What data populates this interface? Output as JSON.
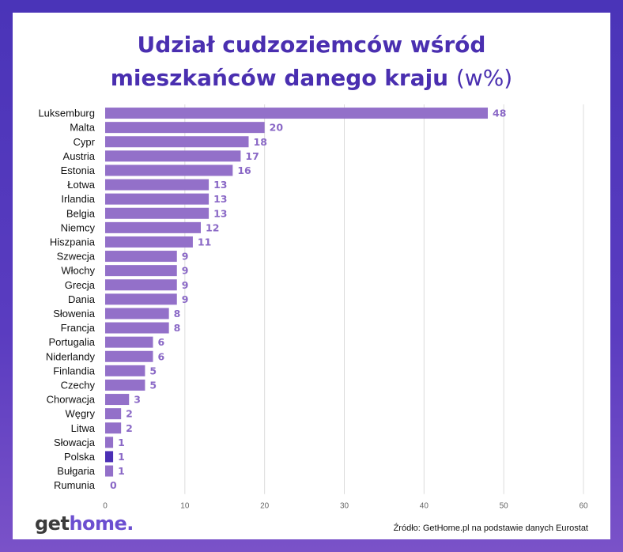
{
  "chart_data": {
    "type": "bar",
    "orientation": "horizontal",
    "title_main_line1": "Udział cudzoziemców wśród",
    "title_main_line2": "mieszkańców danego kraju",
    "title_unit": "(w%)",
    "categories": [
      "Luksemburg",
      "Malta",
      "Cypr",
      "Austria",
      "Estonia",
      "Łotwa",
      "Irlandia",
      "Belgia",
      "Niemcy",
      "Hiszpania",
      "Szwecja",
      "Włochy",
      "Grecja",
      "Dania",
      "Słowenia",
      "Francja",
      "Portugalia",
      "Niderlandy",
      "Finlandia",
      "Czechy",
      "Chorwacja",
      "Węgry",
      "Litwa",
      "Słowacja",
      "Polska",
      "Bułgaria",
      "Rumunia"
    ],
    "values": [
      48,
      20,
      18,
      17,
      16,
      13,
      13,
      13,
      12,
      11,
      9,
      9,
      9,
      9,
      8,
      8,
      6,
      6,
      5,
      5,
      3,
      2,
      2,
      1,
      1,
      1,
      0
    ],
    "highlight": "Polska",
    "xlim": [
      0,
      60
    ],
    "xticks": [
      0,
      10,
      20,
      30,
      40,
      50,
      60
    ],
    "grid": "vertical",
    "colors": {
      "bar": "#9370c9",
      "highlight": "#4b2fb5",
      "label": "#8a68c6",
      "title": "#4a2fb0"
    }
  },
  "brand": {
    "part1": "get",
    "part2": "home",
    "dot": "."
  },
  "source": "Źródło: GetHome.pl na podstawie danych Eurostat"
}
